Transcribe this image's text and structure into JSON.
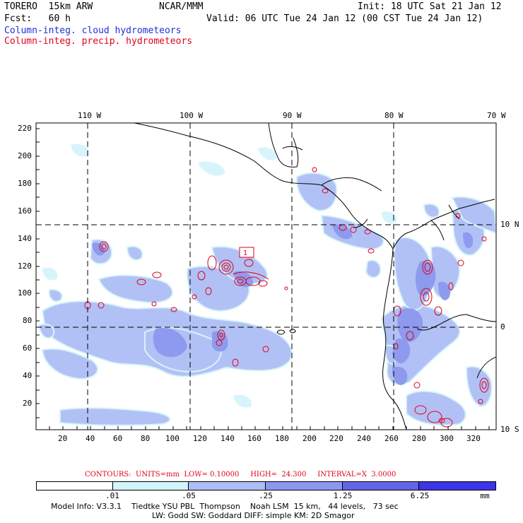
{
  "header": {
    "model": "TORERO  15km ARW",
    "center": "NCAR/MMM",
    "init": "Init: 18 UTC Sat 21 Jan 12",
    "fcst": "Fcst:   60 h",
    "valid": "Valid: 06 UTC Tue 24 Jan 12 (00 CST Tue 24 Jan 12)",
    "field1": "Column-integ. cloud hydrometeors",
    "field2": "Column-integ. precip. hydrometeors"
  },
  "colors": {
    "cloud_shading": [
      "#ffffff",
      "#d2f4fa",
      "#aebef5",
      "#8c98ee",
      "#6563e6",
      "#3e35e8"
    ],
    "precip_contour": "#e0001b",
    "label_blue": "#1e2fd8"
  },
  "lon_labels": [
    "110 W",
    "100 W",
    "90 W",
    "80 W",
    "70 W"
  ],
  "lat_labels": [
    "10 N",
    "0",
    "10 S"
  ],
  "y_ticks": [
    "220",
    "200",
    "180",
    "160",
    "140",
    "120",
    "100",
    "80",
    "60",
    "40",
    "20"
  ],
  "x_ticks": [
    "20",
    "40",
    "60",
    "80",
    "100",
    "120",
    "140",
    "160",
    "180",
    "200",
    "220",
    "240",
    "260",
    "280",
    "300",
    "320"
  ],
  "contour_label": "1",
  "contours_info": "CONTOURS:  UNITS=mm  LOW= 0.10000     HIGH=  24.300     INTERVAL=X  3.0000",
  "colorbar": {
    "thresholds": [
      ".01",
      ".05",
      ".25",
      "1.25",
      "6.25"
    ],
    "units": "mm"
  },
  "footer": {
    "line1": "Model Info: V3.3.1    Tiedtke YSU PBL  Thompson    Noah LSM  15 km,   44 levels,   73 sec",
    "line2": "LW: Godd SW: Goddard DIFF: simple KM: 2D Smagor"
  }
}
